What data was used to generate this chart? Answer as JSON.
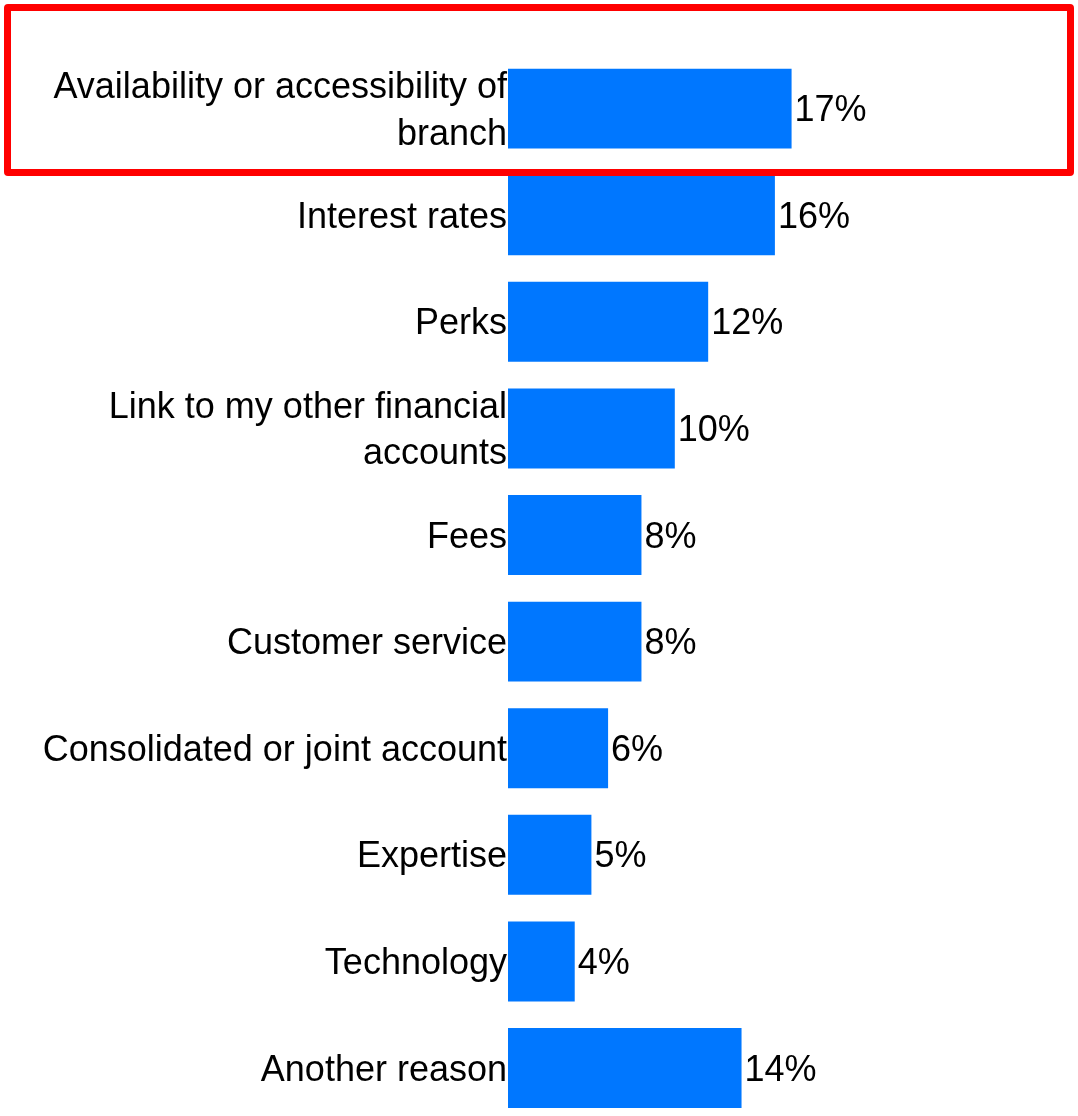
{
  "chart_data": {
    "type": "bar",
    "orientation": "horizontal",
    "categories": [
      "Availability or accessibility of branch",
      "Interest rates",
      "Perks",
      "Link to my other financial accounts",
      "Fees",
      "Customer service",
      "Consolidated or joint account",
      "Expertise",
      "Technology",
      "Another reason"
    ],
    "values": [
      17,
      16,
      12,
      10,
      8,
      8,
      6,
      5,
      4,
      14
    ],
    "value_labels": [
      "17%",
      "16%",
      "12%",
      "10%",
      "8%",
      "8%",
      "6%",
      "5%",
      "4%",
      "14%"
    ],
    "color": "#0077ff"
  }
}
